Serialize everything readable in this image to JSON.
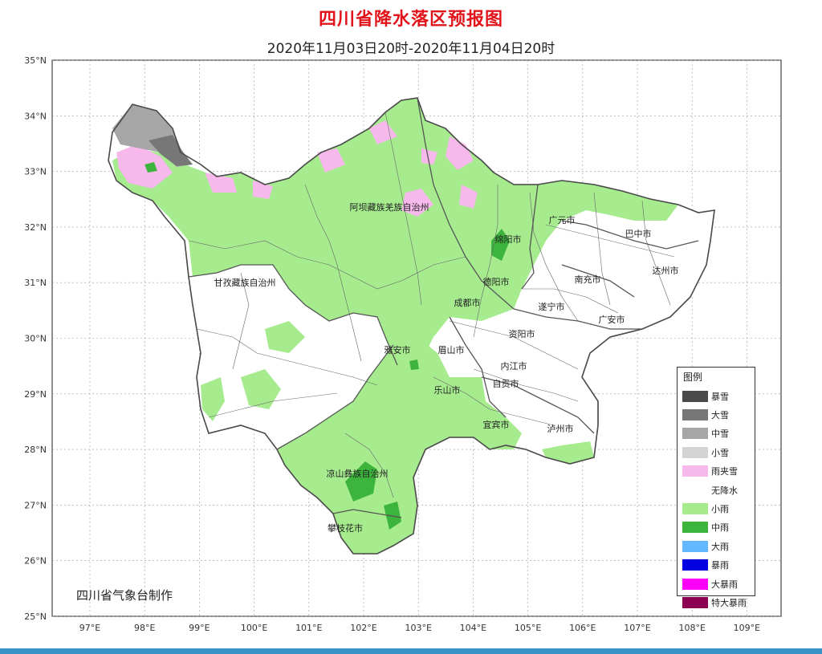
{
  "title": "四川省降水落区预报图",
  "subtitle": "2020年11月03日20时-2020年11月04日20时",
  "credit": "四川省气象台制作",
  "axes": {
    "lat_labels": [
      "35°N",
      "34°N",
      "33°N",
      "32°N",
      "31°N",
      "30°N",
      "29°N",
      "28°N",
      "27°N",
      "26°N",
      "25°N"
    ],
    "lon_labels": [
      "97°E",
      "98°E",
      "99°E",
      "100°E",
      "101°E",
      "102°E",
      "103°E",
      "104°E",
      "105°E",
      "106°E",
      "107°E",
      "108°E",
      "109°E"
    ]
  },
  "regions": [
    {
      "name": "阿坝藏族羌族自治州"
    },
    {
      "name": "甘孜藏族自治州"
    },
    {
      "name": "凉山彝族自治州"
    },
    {
      "name": "广元市"
    },
    {
      "name": "巴中市"
    },
    {
      "name": "绵阳市"
    },
    {
      "name": "德阳市"
    },
    {
      "name": "南充市"
    },
    {
      "name": "达州市"
    },
    {
      "name": "成都市"
    },
    {
      "name": "遂宁市"
    },
    {
      "name": "广安市"
    },
    {
      "name": "雅安市"
    },
    {
      "name": "眉山市"
    },
    {
      "name": "资阳市"
    },
    {
      "name": "内江市"
    },
    {
      "name": "乐山市"
    },
    {
      "name": "自贡市"
    },
    {
      "name": "宜宾市"
    },
    {
      "name": "泸州市"
    },
    {
      "name": "攀枝花市"
    }
  ],
  "legend": {
    "title": "图例",
    "items": [
      {
        "label": "暴雪",
        "color": "#4a4a4a"
      },
      {
        "label": "大雪",
        "color": "#777777"
      },
      {
        "label": "中雪",
        "color": "#a6a6a6"
      },
      {
        "label": "小雪",
        "color": "#d4d4d4"
      },
      {
        "label": "雨夹雪",
        "color": "#f7b8ec"
      },
      {
        "label": "无降水",
        "color": "#ffffff"
      },
      {
        "label": "小雨",
        "color": "#a6ec8f"
      },
      {
        "label": "中雨",
        "color": "#3db53d"
      },
      {
        "label": "大雨",
        "color": "#63b8ff"
      },
      {
        "label": "暴雨",
        "color": "#0000e0"
      },
      {
        "label": "大暴雨",
        "color": "#ff00ff"
      },
      {
        "label": "特大暴雨",
        "color": "#8b0050"
      }
    ]
  }
}
